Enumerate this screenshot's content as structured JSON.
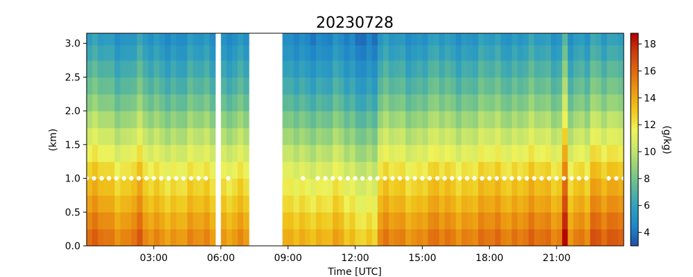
{
  "chart_data": {
    "type": "heatmap",
    "title": "20230728",
    "xlabel": "Time [UTC]",
    "ylabel": "(km)",
    "colorbar_label": "(g/kg)",
    "colormap": [
      "#1f4ea8",
      "#1f86c8",
      "#2f9fbf",
      "#5bb89a",
      "#8fd07d",
      "#c8e66b",
      "#eef35a",
      "#f0c71c",
      "#ec9a12",
      "#e06a10",
      "#cc3d0e",
      "#b00000"
    ],
    "color_range": [
      3.0,
      18.8
    ],
    "xlim": [
      0.0,
      24.0
    ],
    "ylim": [
      0.0,
      3.15
    ],
    "x_tick_values": [
      3,
      6,
      9,
      12,
      15,
      18,
      21
    ],
    "x_tick_labels": [
      "03:00",
      "06:00",
      "09:00",
      "12:00",
      "15:00",
      "18:00",
      "21:00"
    ],
    "y_tick_values": [
      0.0,
      0.5,
      1.0,
      1.5,
      2.0,
      2.5,
      3.0
    ],
    "y_tick_labels": [
      "0.0",
      "0.5",
      "1.0",
      "1.5",
      "2.0",
      "2.5",
      "3.0"
    ],
    "colorbar_tick_values": [
      4,
      6,
      8,
      10,
      12,
      14,
      16,
      18
    ],
    "colorbar_tick_labels": [
      "4",
      "6",
      "8",
      "10",
      "12",
      "14",
      "16",
      "18"
    ],
    "missing_data_intervals_hours": [
      [
        5.75,
        6.1
      ],
      [
        7.2,
        8.8
      ]
    ],
    "heights_km": [
      0.125,
      0.375,
      0.625,
      0.875,
      1.125,
      1.375,
      1.625,
      1.875,
      2.125,
      2.375,
      2.625,
      2.875,
      3.075
    ],
    "mean_profile_g_per_kg": [
      15.0,
      14.3,
      13.5,
      12.8,
      12.0,
      11.0,
      10.0,
      9.0,
      8.0,
      7.2,
      6.5,
      5.8,
      5.3
    ],
    "time_block_anomalies": [
      {
        "start_h": 0.0,
        "end_h": 0.8,
        "anomaly": 0.8
      },
      {
        "start_h": 0.8,
        "end_h": 2.0,
        "anomaly": 0.2
      },
      {
        "start_h": 2.0,
        "end_h": 2.6,
        "anomaly": 1.2
      },
      {
        "start_h": 2.6,
        "end_h": 5.75,
        "anomaly": -0.3
      },
      {
        "start_h": 6.1,
        "end_h": 7.2,
        "anomaly": -0.5
      },
      {
        "start_h": 8.8,
        "end_h": 10.0,
        "anomaly": -1.5
      },
      {
        "start_h": 10.0,
        "end_h": 11.5,
        "anomaly": -1.2
      },
      {
        "start_h": 11.5,
        "end_h": 13.0,
        "anomaly": -2.0
      },
      {
        "start_h": 13.0,
        "end_h": 15.0,
        "anomaly": 0.0
      },
      {
        "start_h": 15.0,
        "end_h": 18.0,
        "anomaly": 0.3
      },
      {
        "start_h": 18.0,
        "end_h": 21.2,
        "anomaly": 0.6
      },
      {
        "start_h": 21.2,
        "end_h": 21.55,
        "anomaly": 3.5
      },
      {
        "start_h": 21.55,
        "end_h": 22.5,
        "anomaly": 0.0
      },
      {
        "start_h": 22.5,
        "end_h": 24.0,
        "anomaly": 1.5
      }
    ],
    "marker_series": {
      "name": "",
      "height_km": 1.0,
      "color": "#ffffff",
      "times_h": [
        0.0,
        0.33,
        0.67,
        1.0,
        1.33,
        1.67,
        2.0,
        2.33,
        2.67,
        3.0,
        3.33,
        3.67,
        4.0,
        4.33,
        4.67,
        5.0,
        5.33,
        6.33,
        9.67,
        10.33,
        10.67,
        11.0,
        11.33,
        11.67,
        12.0,
        12.33,
        12.67,
        13.0,
        13.33,
        13.67,
        14.0,
        14.33,
        14.67,
        15.0,
        15.33,
        15.67,
        16.0,
        16.33,
        16.67,
        17.0,
        17.33,
        17.67,
        18.0,
        18.33,
        18.67,
        19.0,
        19.33,
        19.67,
        20.0,
        20.33,
        20.67,
        21.0,
        21.33,
        21.67,
        22.0,
        22.33,
        23.33,
        23.67,
        24.0
      ]
    }
  }
}
